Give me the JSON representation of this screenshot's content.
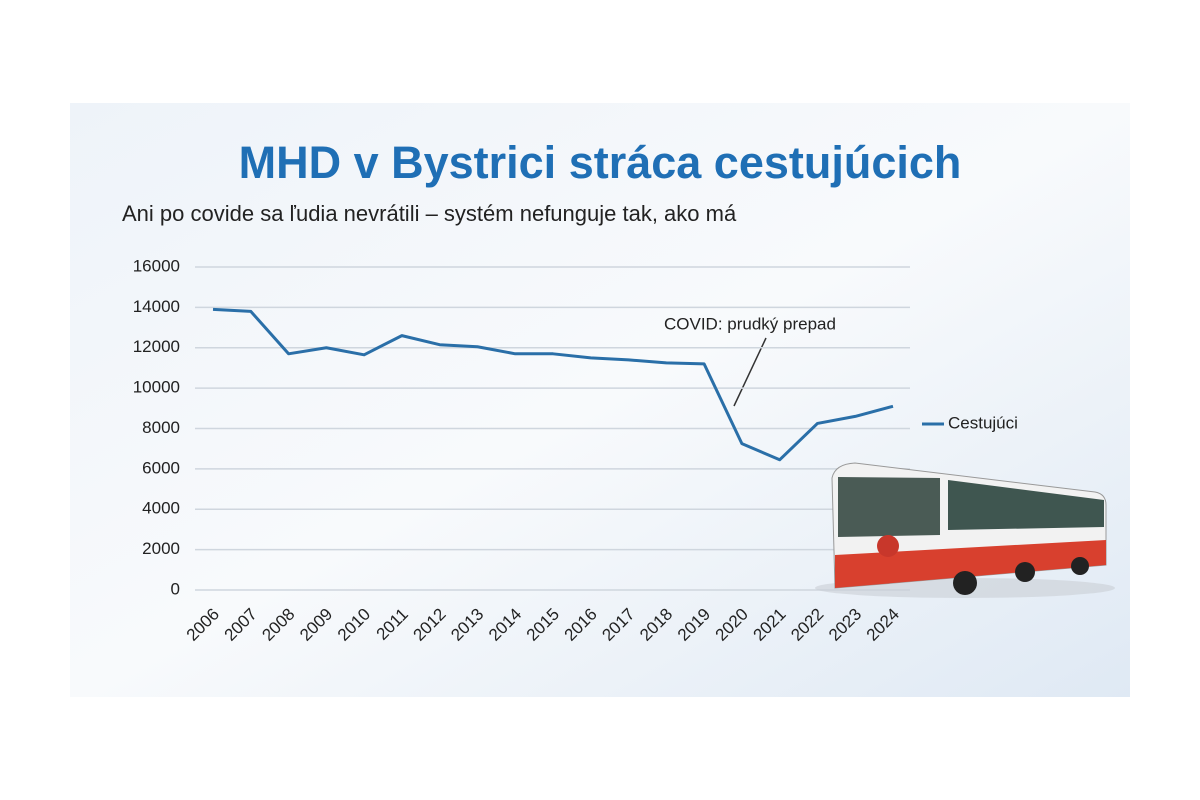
{
  "chart_data": {
    "type": "line",
    "title": "MHD v Bystrici stráca cestujúcich",
    "subtitle": "Ani po covide sa ľudia nevrátili – systém nefunguje tak, ako má",
    "categories": [
      "2006",
      "2007",
      "2008",
      "2009",
      "2010",
      "2011",
      "2012",
      "2013",
      "2014",
      "2015",
      "2016",
      "2017",
      "2018",
      "2019",
      "2020",
      "2021",
      "2022",
      "2023",
      "2024"
    ],
    "series": [
      {
        "name": "Cestujúci",
        "color": "#2a6fa8",
        "values": [
          13900,
          13800,
          11700,
          12000,
          11650,
          12600,
          12150,
          12050,
          11700,
          11700,
          11500,
          11400,
          11250,
          11200,
          7250,
          6450,
          8250,
          8600,
          9100
        ]
      }
    ],
    "ylim": [
      0,
      16000
    ],
    "yticks": [
      0,
      2000,
      4000,
      6000,
      8000,
      10000,
      12000,
      14000,
      16000
    ],
    "grid": true,
    "legend": "right",
    "annotations": [
      {
        "text": "COVID: prudký prepad"
      }
    ]
  }
}
